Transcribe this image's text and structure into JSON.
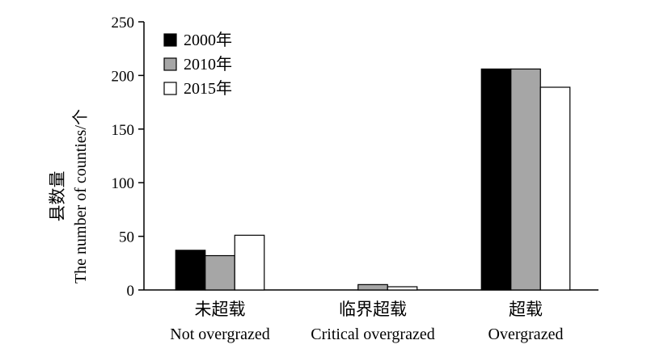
{
  "chart_data": {
    "type": "bar",
    "ylabel_cn": "县数量",
    "ylabel_en": "The number of counties/个",
    "ylim": [
      0,
      250
    ],
    "yticks": [
      0,
      50,
      100,
      150,
      200,
      250
    ],
    "legend_position": "top-left",
    "categories": [
      {
        "cn": "未超载",
        "en": "Not overgrazed"
      },
      {
        "cn": "临界超载",
        "en": "Critical overgrazed"
      },
      {
        "cn": "超载",
        "en": "Overgrazed"
      }
    ],
    "series": [
      {
        "name": "2000年",
        "color": "#000000",
        "values": [
          37,
          0,
          206
        ]
      },
      {
        "name": "2010年",
        "color": "#a6a6a6",
        "values": [
          32,
          5,
          206
        ]
      },
      {
        "name": "2015年",
        "color": "#ffffff",
        "values": [
          51,
          3,
          189
        ]
      }
    ]
  }
}
